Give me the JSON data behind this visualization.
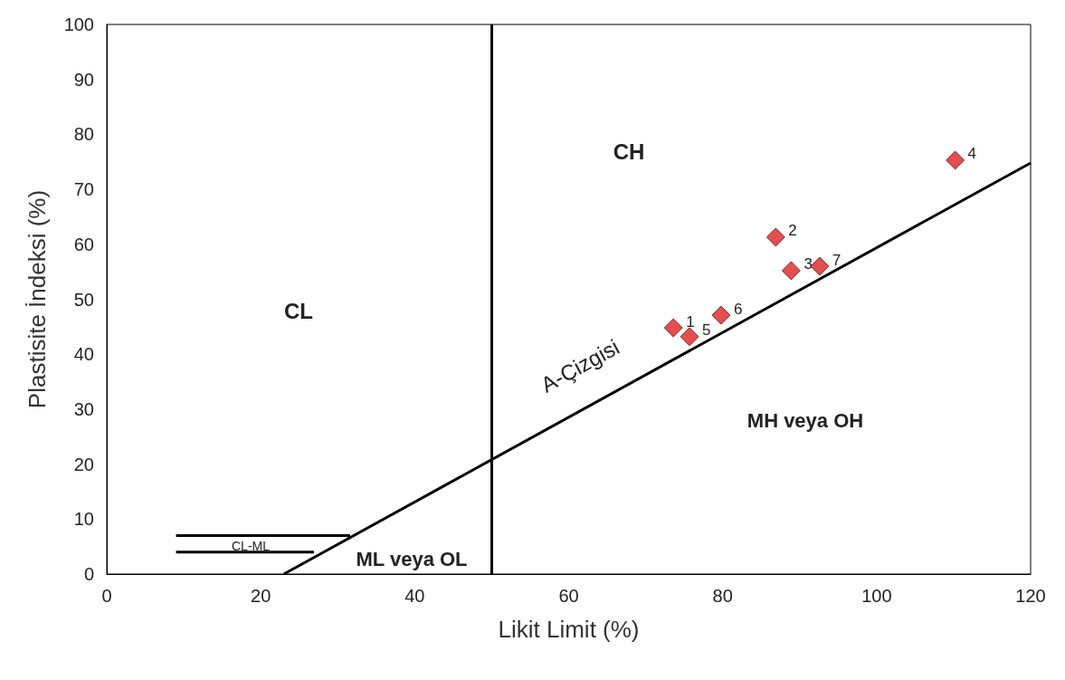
{
  "chart_data": {
    "type": "scatter",
    "xlabel": "Likit Limit (%)",
    "ylabel": "Plastisite İndeksi (%)",
    "xlim": [
      0,
      120
    ],
    "xticks": [
      0,
      20,
      40,
      60,
      80,
      100,
      120
    ],
    "ylim": [
      0,
      100
    ],
    "yticks": [
      0,
      10,
      20,
      30,
      40,
      50,
      60,
      70,
      80,
      90,
      100
    ],
    "grid": false,
    "marker": "diamond",
    "series": [
      {
        "color": "#dd2222",
        "x": [
          73.6,
          86.9,
          88.9,
          110.2,
          75.7,
          79.8,
          92.6
        ],
        "values": [
          44.8,
          61.3,
          55.2,
          75.3,
          43.2,
          47.1,
          56.0
        ]
      },
      {
        "type": "line",
        "color": "#000000",
        "marker": "none",
        "line_style": "solid",
        "x": [
          23,
          120
        ],
        "values": [
          0,
          74.8
        ]
      },
      {
        "type": "line",
        "color": "#000000",
        "marker": "none",
        "line_style": "solid",
        "x": [
          9,
          31.6
        ],
        "values": [
          7,
          7
        ]
      },
      {
        "type": "line",
        "color": "#000000",
        "marker": "none",
        "line_style": "solid",
        "x": [
          9,
          26.9
        ],
        "values": [
          4,
          4
        ]
      }
    ],
    "ref_lines": [
      {
        "axis": "x",
        "value": 50,
        "color": "#000000",
        "line_style": "solid"
      }
    ],
    "annotations": [
      "CL",
      "CH",
      "MH veya OH",
      "ML veya OL",
      "CL-ML",
      "A-Çizgisi",
      {
        "text": "1",
        "x": 73.6,
        "y": 44.8
      },
      {
        "text": "2",
        "x": 86.9,
        "y": 61.3
      },
      {
        "text": "3",
        "x": 88.9,
        "y": 55.2
      },
      {
        "text": "4",
        "x": 110.2,
        "y": 75.3
      },
      {
        "text": "5",
        "x": 75.7,
        "y": 43.2
      },
      {
        "text": "6",
        "x": 79.8,
        "y": 47.1
      },
      {
        "text": "7",
        "x": 92.6,
        "y": 56.0
      }
    ]
  }
}
